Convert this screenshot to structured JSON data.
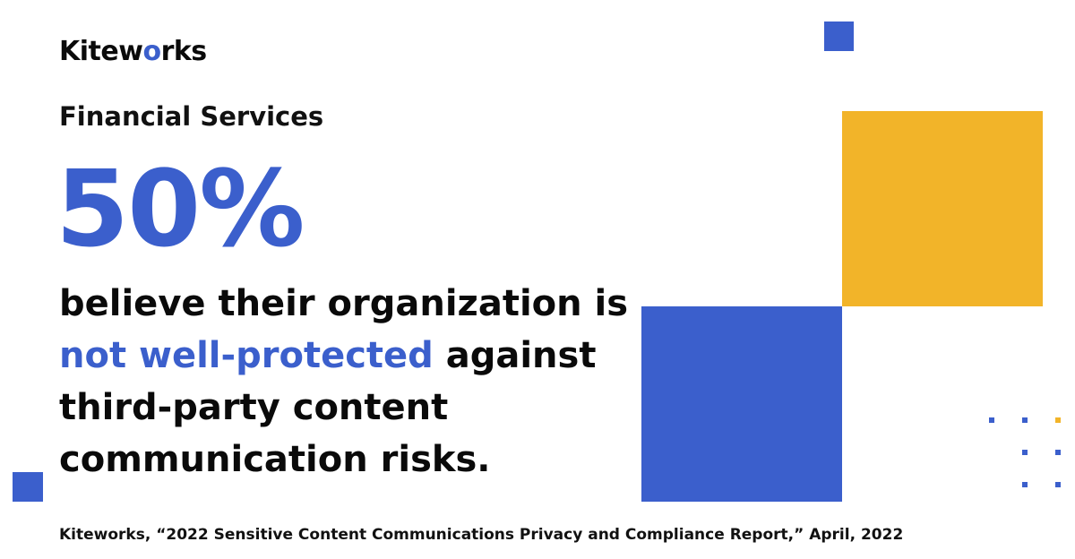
{
  "brand": {
    "logo_prefix": "Kitew",
    "logo_accent": "o",
    "logo_suffix": "rks"
  },
  "headline": {
    "category": "Financial Services",
    "stat_value": "50%",
    "line1": "believe their organization is",
    "highlight": "not well-protected",
    "line2_rest": " against",
    "line3": "third-party content",
    "line4": "communication risks."
  },
  "citation": "Kiteworks, “2022 Sensitive Content Communications Privacy and Compliance Report,” April, 2022",
  "colors": {
    "accent_blue": "#3b5fcc",
    "accent_yellow": "#f2b429",
    "text": "#0a0a0a",
    "background": "#ffffff"
  }
}
